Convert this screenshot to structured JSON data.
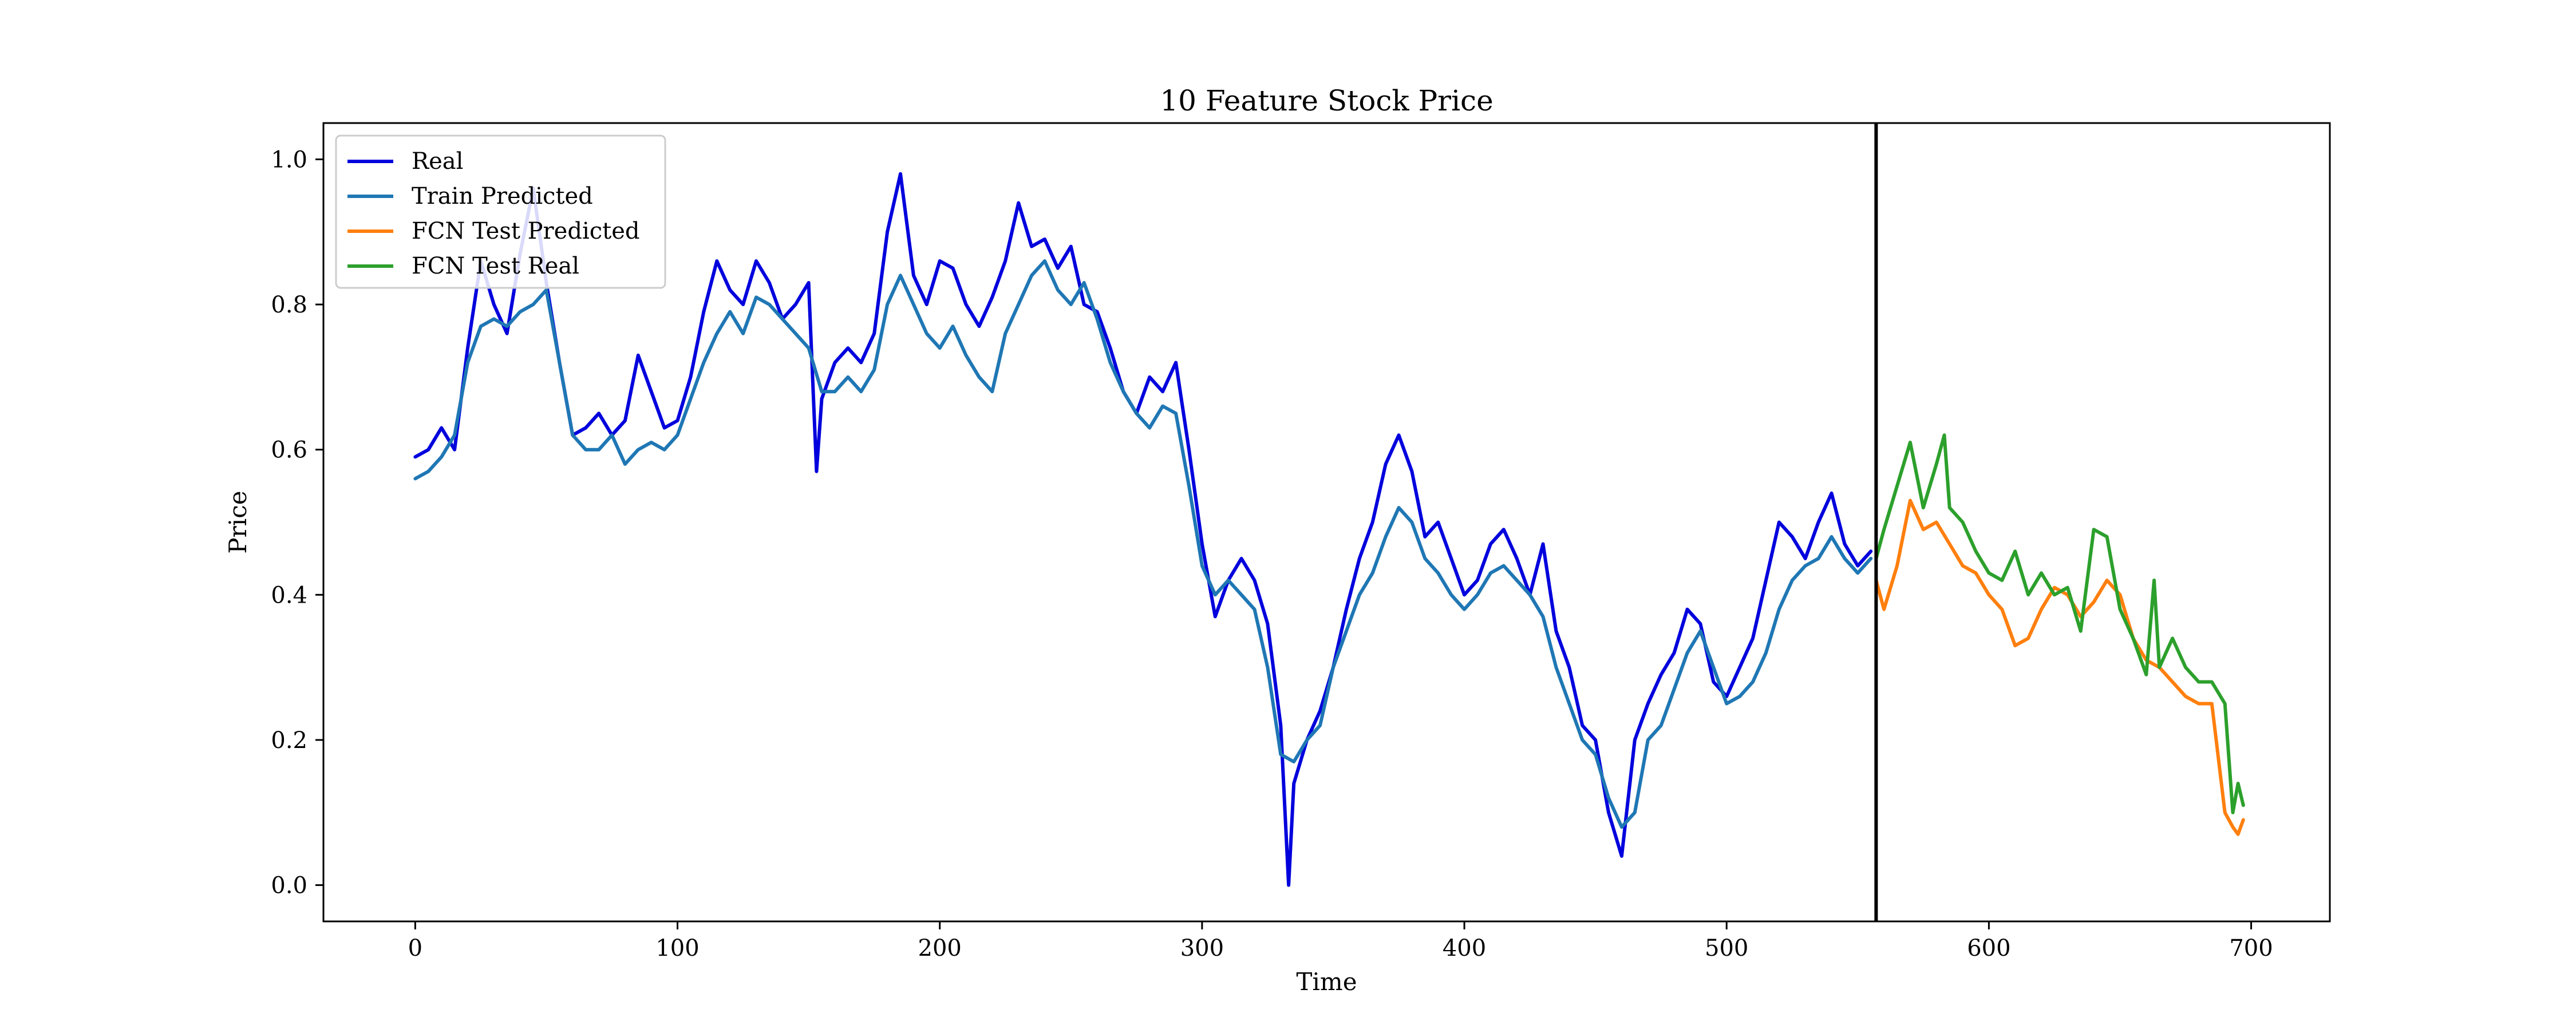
{
  "chart_data": {
    "type": "line",
    "title": "10 Feature Stock Price",
    "xlabel": "Time",
    "ylabel": "Price",
    "xlim": [
      -35,
      730
    ],
    "ylim": [
      -0.05,
      1.05
    ],
    "xticks": [
      0,
      100,
      200,
      300,
      400,
      500,
      600,
      700
    ],
    "yticks": [
      0.0,
      0.2,
      0.4,
      0.6,
      0.8,
      1.0
    ],
    "xtick_labels": [
      "0",
      "100",
      "200",
      "300",
      "400",
      "500",
      "600",
      "700"
    ],
    "ytick_labels": [
      "0.0",
      "0.2",
      "0.4",
      "0.6",
      "0.8",
      "1.0"
    ],
    "vline_x": 557,
    "grid": false,
    "legend_position": "upper-left",
    "series": [
      {
        "name": "Real",
        "color": "#0000dd",
        "x": [
          0,
          5,
          10,
          15,
          20,
          25,
          30,
          35,
          40,
          45,
          50,
          55,
          60,
          65,
          70,
          75,
          80,
          85,
          90,
          95,
          100,
          105,
          110,
          115,
          120,
          125,
          130,
          135,
          140,
          145,
          150,
          153,
          155,
          160,
          165,
          170,
          175,
          180,
          185,
          190,
          195,
          200,
          205,
          210,
          215,
          220,
          225,
          230,
          235,
          240,
          245,
          250,
          255,
          260,
          265,
          270,
          275,
          280,
          285,
          290,
          295,
          300,
          305,
          310,
          315,
          320,
          325,
          330,
          333,
          335,
          340,
          345,
          350,
          355,
          360,
          365,
          370,
          375,
          380,
          385,
          390,
          395,
          400,
          405,
          410,
          415,
          420,
          425,
          430,
          435,
          440,
          445,
          450,
          455,
          460,
          465,
          470,
          475,
          480,
          485,
          490,
          495,
          500,
          505,
          510,
          515,
          520,
          525,
          530,
          535,
          540,
          545,
          550,
          555
        ],
        "y": [
          0.59,
          0.6,
          0.63,
          0.6,
          0.74,
          0.86,
          0.8,
          0.76,
          0.87,
          0.96,
          0.83,
          0.72,
          0.62,
          0.63,
          0.65,
          0.62,
          0.64,
          0.73,
          0.68,
          0.63,
          0.64,
          0.7,
          0.79,
          0.86,
          0.82,
          0.8,
          0.86,
          0.83,
          0.78,
          0.8,
          0.83,
          0.57,
          0.67,
          0.72,
          0.74,
          0.72,
          0.76,
          0.9,
          0.98,
          0.84,
          0.8,
          0.86,
          0.85,
          0.8,
          0.77,
          0.81,
          0.86,
          0.94,
          0.88,
          0.89,
          0.85,
          0.88,
          0.8,
          0.79,
          0.74,
          0.68,
          0.65,
          0.7,
          0.68,
          0.72,
          0.6,
          0.47,
          0.37,
          0.42,
          0.45,
          0.42,
          0.36,
          0.22,
          0.0,
          0.14,
          0.2,
          0.24,
          0.3,
          0.38,
          0.45,
          0.5,
          0.58,
          0.62,
          0.57,
          0.48,
          0.5,
          0.45,
          0.4,
          0.42,
          0.47,
          0.49,
          0.45,
          0.4,
          0.47,
          0.35,
          0.3,
          0.22,
          0.2,
          0.1,
          0.04,
          0.2,
          0.25,
          0.29,
          0.32,
          0.38,
          0.36,
          0.28,
          0.26,
          0.3,
          0.34,
          0.42,
          0.5,
          0.48,
          0.45,
          0.5,
          0.54,
          0.47,
          0.44,
          0.46
        ]
      },
      {
        "name": "Train Predicted",
        "color": "#1f77b4",
        "x": [
          0,
          5,
          10,
          15,
          20,
          25,
          30,
          35,
          40,
          45,
          50,
          55,
          60,
          65,
          70,
          75,
          80,
          85,
          90,
          95,
          100,
          105,
          110,
          115,
          120,
          125,
          130,
          135,
          140,
          145,
          150,
          155,
          160,
          165,
          170,
          175,
          180,
          185,
          190,
          195,
          200,
          205,
          210,
          215,
          220,
          225,
          230,
          235,
          240,
          245,
          250,
          255,
          260,
          265,
          270,
          275,
          280,
          285,
          290,
          295,
          300,
          305,
          310,
          315,
          320,
          325,
          330,
          335,
          340,
          345,
          350,
          355,
          360,
          365,
          370,
          375,
          380,
          385,
          390,
          395,
          400,
          405,
          410,
          415,
          420,
          425,
          430,
          435,
          440,
          445,
          450,
          455,
          460,
          465,
          470,
          475,
          480,
          485,
          490,
          495,
          500,
          505,
          510,
          515,
          520,
          525,
          530,
          535,
          540,
          545,
          550,
          555
        ],
        "y": [
          0.56,
          0.57,
          0.59,
          0.62,
          0.72,
          0.77,
          0.78,
          0.77,
          0.79,
          0.8,
          0.82,
          0.72,
          0.62,
          0.6,
          0.6,
          0.62,
          0.58,
          0.6,
          0.61,
          0.6,
          0.62,
          0.67,
          0.72,
          0.76,
          0.79,
          0.76,
          0.81,
          0.8,
          0.78,
          0.76,
          0.74,
          0.68,
          0.68,
          0.7,
          0.68,
          0.71,
          0.8,
          0.84,
          0.8,
          0.76,
          0.74,
          0.77,
          0.73,
          0.7,
          0.68,
          0.76,
          0.8,
          0.84,
          0.86,
          0.82,
          0.8,
          0.83,
          0.78,
          0.72,
          0.68,
          0.65,
          0.63,
          0.66,
          0.65,
          0.55,
          0.44,
          0.4,
          0.42,
          0.4,
          0.38,
          0.3,
          0.18,
          0.17,
          0.2,
          0.22,
          0.3,
          0.35,
          0.4,
          0.43,
          0.48,
          0.52,
          0.5,
          0.45,
          0.43,
          0.4,
          0.38,
          0.4,
          0.43,
          0.44,
          0.42,
          0.4,
          0.37,
          0.3,
          0.25,
          0.2,
          0.18,
          0.12,
          0.08,
          0.1,
          0.2,
          0.22,
          0.27,
          0.32,
          0.35,
          0.3,
          0.25,
          0.26,
          0.28,
          0.32,
          0.38,
          0.42,
          0.44,
          0.45,
          0.48,
          0.45,
          0.43,
          0.45
        ]
      },
      {
        "name": "FCN Test Predicted",
        "color": "#ff7f0e",
        "x": [
          557,
          560,
          565,
          570,
          575,
          580,
          585,
          590,
          595,
          600,
          605,
          610,
          615,
          620,
          625,
          630,
          635,
          640,
          645,
          650,
          655,
          660,
          665,
          670,
          675,
          680,
          685,
          690,
          693,
          695,
          697
        ],
        "y": [
          0.42,
          0.38,
          0.44,
          0.53,
          0.49,
          0.5,
          0.47,
          0.44,
          0.43,
          0.4,
          0.38,
          0.33,
          0.34,
          0.38,
          0.41,
          0.4,
          0.37,
          0.39,
          0.42,
          0.4,
          0.34,
          0.31,
          0.3,
          0.28,
          0.26,
          0.25,
          0.25,
          0.1,
          0.08,
          0.07,
          0.09
        ]
      },
      {
        "name": "FCN Test Real",
        "color": "#2ca02c",
        "x": [
          557,
          560,
          565,
          570,
          575,
          580,
          583,
          585,
          590,
          595,
          600,
          605,
          610,
          615,
          620,
          625,
          630,
          635,
          640,
          645,
          650,
          655,
          660,
          663,
          665,
          670,
          675,
          680,
          685,
          690,
          693,
          695,
          697
        ],
        "y": [
          0.45,
          0.49,
          0.55,
          0.61,
          0.52,
          0.58,
          0.62,
          0.52,
          0.5,
          0.46,
          0.43,
          0.42,
          0.46,
          0.4,
          0.43,
          0.4,
          0.41,
          0.35,
          0.49,
          0.48,
          0.38,
          0.34,
          0.29,
          0.42,
          0.3,
          0.34,
          0.3,
          0.28,
          0.28,
          0.25,
          0.1,
          0.14,
          0.11
        ]
      }
    ]
  }
}
